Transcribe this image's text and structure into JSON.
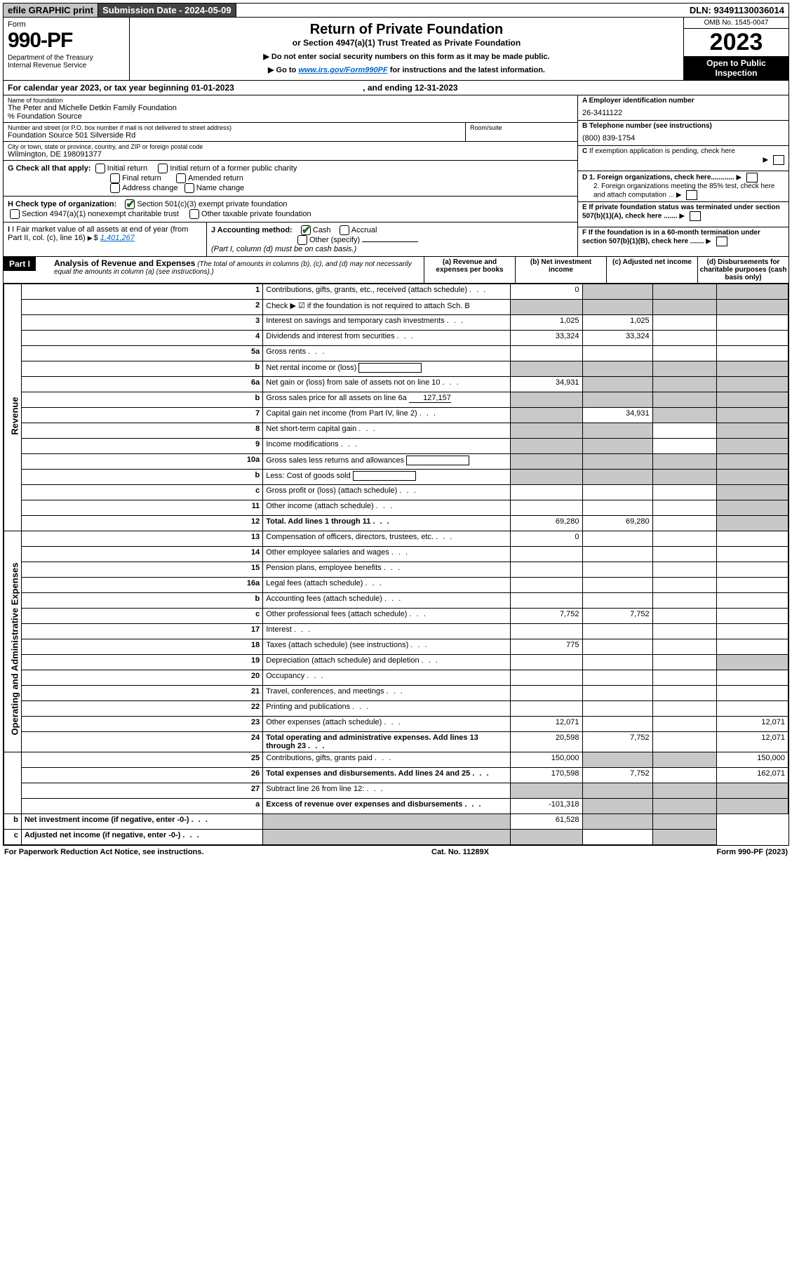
{
  "topbar": {
    "efile": "efile GRAPHIC print",
    "submission": "Submission Date - 2024-05-09",
    "dln": "DLN: 93491130036014"
  },
  "header": {
    "form_label": "Form",
    "form_num": "990-PF",
    "dept": "Department of the Treasury\nInternal Revenue Service",
    "title": "Return of Private Foundation",
    "subtitle": "or Section 4947(a)(1) Trust Treated as Private Foundation",
    "note1": "▶ Do not enter social security numbers on this form as it may be made public.",
    "note2_pre": "▶ Go to ",
    "note2_link": "www.irs.gov/Form990PF",
    "note2_post": " for instructions and the latest information.",
    "omb": "OMB No. 1545-0047",
    "year": "2023",
    "open": "Open to Public Inspection"
  },
  "calendar": {
    "text": "For calendar year 2023, or tax year beginning 01-01-2023",
    "ending": ", and ending 12-31-2023"
  },
  "entity": {
    "name_lbl": "Name of foundation",
    "name": "The Peter and Michelle Detkin Family Foundation",
    "co": "% Foundation Source",
    "addr_lbl": "Number and street (or P.O. box number if mail is not delivered to street address)",
    "addr": "Foundation Source 501 Silverside Rd",
    "room_lbl": "Room/suite",
    "city_lbl": "City or town, state or province, country, and ZIP or foreign postal code",
    "city": "Wilmington, DE  198091377",
    "ein_lbl": "A Employer identification number",
    "ein": "26-3411122",
    "phone_lbl": "B Telephone number (see instructions)",
    "phone": "(800) 839-1754",
    "c_lbl": "C If exemption application is pending, check here",
    "d1": "D 1. Foreign organizations, check here............",
    "d2": "2. Foreign organizations meeting the 85% test, check here and attach computation ...",
    "e_lbl": "E  If private foundation status was terminated under section 507(b)(1)(A), check here .......",
    "f_lbl": "F  If the foundation is in a 60-month termination under section 507(b)(1)(B), check here ......."
  },
  "g": {
    "label": "G Check all that apply:",
    "opts": [
      "Initial return",
      "Initial return of a former public charity",
      "Final return",
      "Amended return",
      "Address change",
      "Name change"
    ]
  },
  "h": {
    "label": "H Check type of organization:",
    "opt1": "Section 501(c)(3) exempt private foundation",
    "opt2": "Section 4947(a)(1) nonexempt charitable trust",
    "opt3": "Other taxable private foundation"
  },
  "i": {
    "label": "I Fair market value of all assets at end of year (from Part II, col. (c), line 16)",
    "val": "1,401,267"
  },
  "j": {
    "label": "J Accounting method:",
    "cash": "Cash",
    "accrual": "Accrual",
    "other": "Other (specify)",
    "note": "(Part I, column (d) must be on cash basis.)"
  },
  "part1": {
    "label": "Part I",
    "title": "Analysis of Revenue and Expenses",
    "note": "(The total of amounts in columns (b), (c), and (d) may not necessarily equal the amounts in column (a) (see instructions).)",
    "cols": {
      "a": "(a) Revenue and expenses per books",
      "b": "(b) Net investment income",
      "c": "(c) Adjusted net income",
      "d": "(d) Disbursements for charitable purposes (cash basis only)"
    }
  },
  "side": {
    "rev": "Revenue",
    "exp": "Operating and Administrative Expenses"
  },
  "rows": [
    {
      "n": "1",
      "d": "Contributions, gifts, grants, etc., received (attach schedule)",
      "a": "0",
      "ds": true,
      "cs": true,
      "bs": true
    },
    {
      "n": "2",
      "d": "Check ▶ ☑ if the foundation is not required to attach Sch. B",
      "all_s": true,
      "dotsfree": true
    },
    {
      "n": "3",
      "d": "Interest on savings and temporary cash investments",
      "a": "1,025",
      "b": "1,025"
    },
    {
      "n": "4",
      "d": "Dividends and interest from securities",
      "a": "33,324",
      "b": "33,324"
    },
    {
      "n": "5a",
      "d": "Gross rents"
    },
    {
      "n": "b",
      "d": "Net rental income or (loss)",
      "all_s": true,
      "inline": true
    },
    {
      "n": "6a",
      "d": "Net gain or (loss) from sale of assets not on line 10",
      "a": "34,931",
      "ds": true,
      "cs": true,
      "bs": true
    },
    {
      "n": "b",
      "d": "Gross sales price for all assets on line 6a",
      "inline": "127,157",
      "all_s": true
    },
    {
      "n": "7",
      "d": "Capital gain net income (from Part IV, line 2)",
      "as": true,
      "b": "34,931",
      "ds": true,
      "cs": true
    },
    {
      "n": "8",
      "d": "Net short-term capital gain",
      "as": true,
      "bs": true,
      "ds": true
    },
    {
      "n": "9",
      "d": "Income modifications",
      "as": true,
      "bs": true,
      "ds": true
    },
    {
      "n": "10a",
      "d": "Gross sales less returns and allowances",
      "all_s": true,
      "inline": true
    },
    {
      "n": "b",
      "d": "Less: Cost of goods sold",
      "all_s": true,
      "inline": true
    },
    {
      "n": "c",
      "d": "Gross profit or (loss) (attach schedule)",
      "ds": true
    },
    {
      "n": "11",
      "d": "Other income (attach schedule)",
      "ds": true
    },
    {
      "n": "12",
      "d": "Total. Add lines 1 through 11",
      "bold": true,
      "a": "69,280",
      "b": "69,280",
      "ds": true
    },
    {
      "n": "13",
      "d": "Compensation of officers, directors, trustees, etc.",
      "a": "0"
    },
    {
      "n": "14",
      "d": "Other employee salaries and wages"
    },
    {
      "n": "15",
      "d": "Pension plans, employee benefits"
    },
    {
      "n": "16a",
      "d": "Legal fees (attach schedule)"
    },
    {
      "n": "b",
      "d": "Accounting fees (attach schedule)"
    },
    {
      "n": "c",
      "d": "Other professional fees (attach schedule)",
      "a": "7,752",
      "b": "7,752"
    },
    {
      "n": "17",
      "d": "Interest"
    },
    {
      "n": "18",
      "d": "Taxes (attach schedule) (see instructions)",
      "a": "775"
    },
    {
      "n": "19",
      "d": "Depreciation (attach schedule) and depletion",
      "ds": true
    },
    {
      "n": "20",
      "d": "Occupancy"
    },
    {
      "n": "21",
      "d": "Travel, conferences, and meetings"
    },
    {
      "n": "22",
      "d": "Printing and publications"
    },
    {
      "n": "23",
      "d": "Other expenses (attach schedule)",
      "a": "12,071",
      "dd": "12,071"
    },
    {
      "n": "24",
      "d": "Total operating and administrative expenses. Add lines 13 through 23",
      "bold": true,
      "a": "20,598",
      "b": "7,752",
      "dd": "12,071"
    },
    {
      "n": "25",
      "d": "Contributions, gifts, grants paid",
      "a": "150,000",
      "bs": true,
      "cs": true,
      "dd": "150,000"
    },
    {
      "n": "26",
      "d": "Total expenses and disbursements. Add lines 24 and 25",
      "bold": true,
      "a": "170,598",
      "b": "7,752",
      "dd": "162,071"
    },
    {
      "n": "27",
      "d": "Subtract line 26 from line 12:",
      "all_s": true
    },
    {
      "n": "a",
      "d": "Excess of revenue over expenses and disbursements",
      "bold": true,
      "a": "-101,318",
      "bs": true,
      "cs": true,
      "ds": true
    },
    {
      "n": "b",
      "d": "Net investment income (if negative, enter -0-)",
      "bold": true,
      "as": true,
      "b": "61,528",
      "cs": true,
      "ds": true
    },
    {
      "n": "c",
      "d": "Adjusted net income (if negative, enter -0-)",
      "bold": true,
      "as": true,
      "bs": true,
      "ds": true
    }
  ],
  "footer": {
    "left": "For Paperwork Reduction Act Notice, see instructions.",
    "mid": "Cat. No. 11289X",
    "right": "Form 990-PF (2023)"
  }
}
